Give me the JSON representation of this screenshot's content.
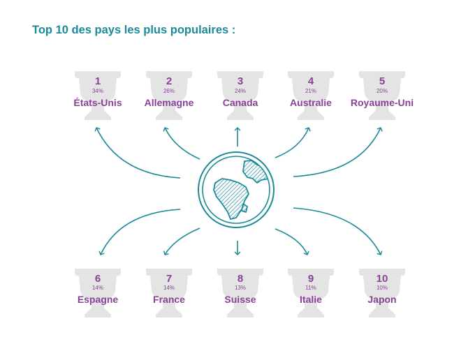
{
  "title": "Top 10 des pays les plus populaires :",
  "colors": {
    "title": "#1b8a99",
    "text": "#8a3f99",
    "arrow": "#1b8a99",
    "trophy": "#e4e4e4"
  },
  "center_icon": "globe-icon",
  "countries": [
    {
      "rank": "1",
      "pct": "34%",
      "name": "États-Unis"
    },
    {
      "rank": "2",
      "pct": "26%",
      "name": "Allemagne"
    },
    {
      "rank": "3",
      "pct": "24%",
      "name": "Canada"
    },
    {
      "rank": "4",
      "pct": "21%",
      "name": "Australie"
    },
    {
      "rank": "5",
      "pct": "20%",
      "name": "Royaume-Uni"
    },
    {
      "rank": "6",
      "pct": "14%",
      "name": "Espagne"
    },
    {
      "rank": "7",
      "pct": "14%",
      "name": "France"
    },
    {
      "rank": "8",
      "pct": "13%",
      "name": "Suisse"
    },
    {
      "rank": "9",
      "pct": "11%",
      "name": "Italie"
    },
    {
      "rank": "10",
      "pct": "10%",
      "name": "Japon"
    }
  ]
}
